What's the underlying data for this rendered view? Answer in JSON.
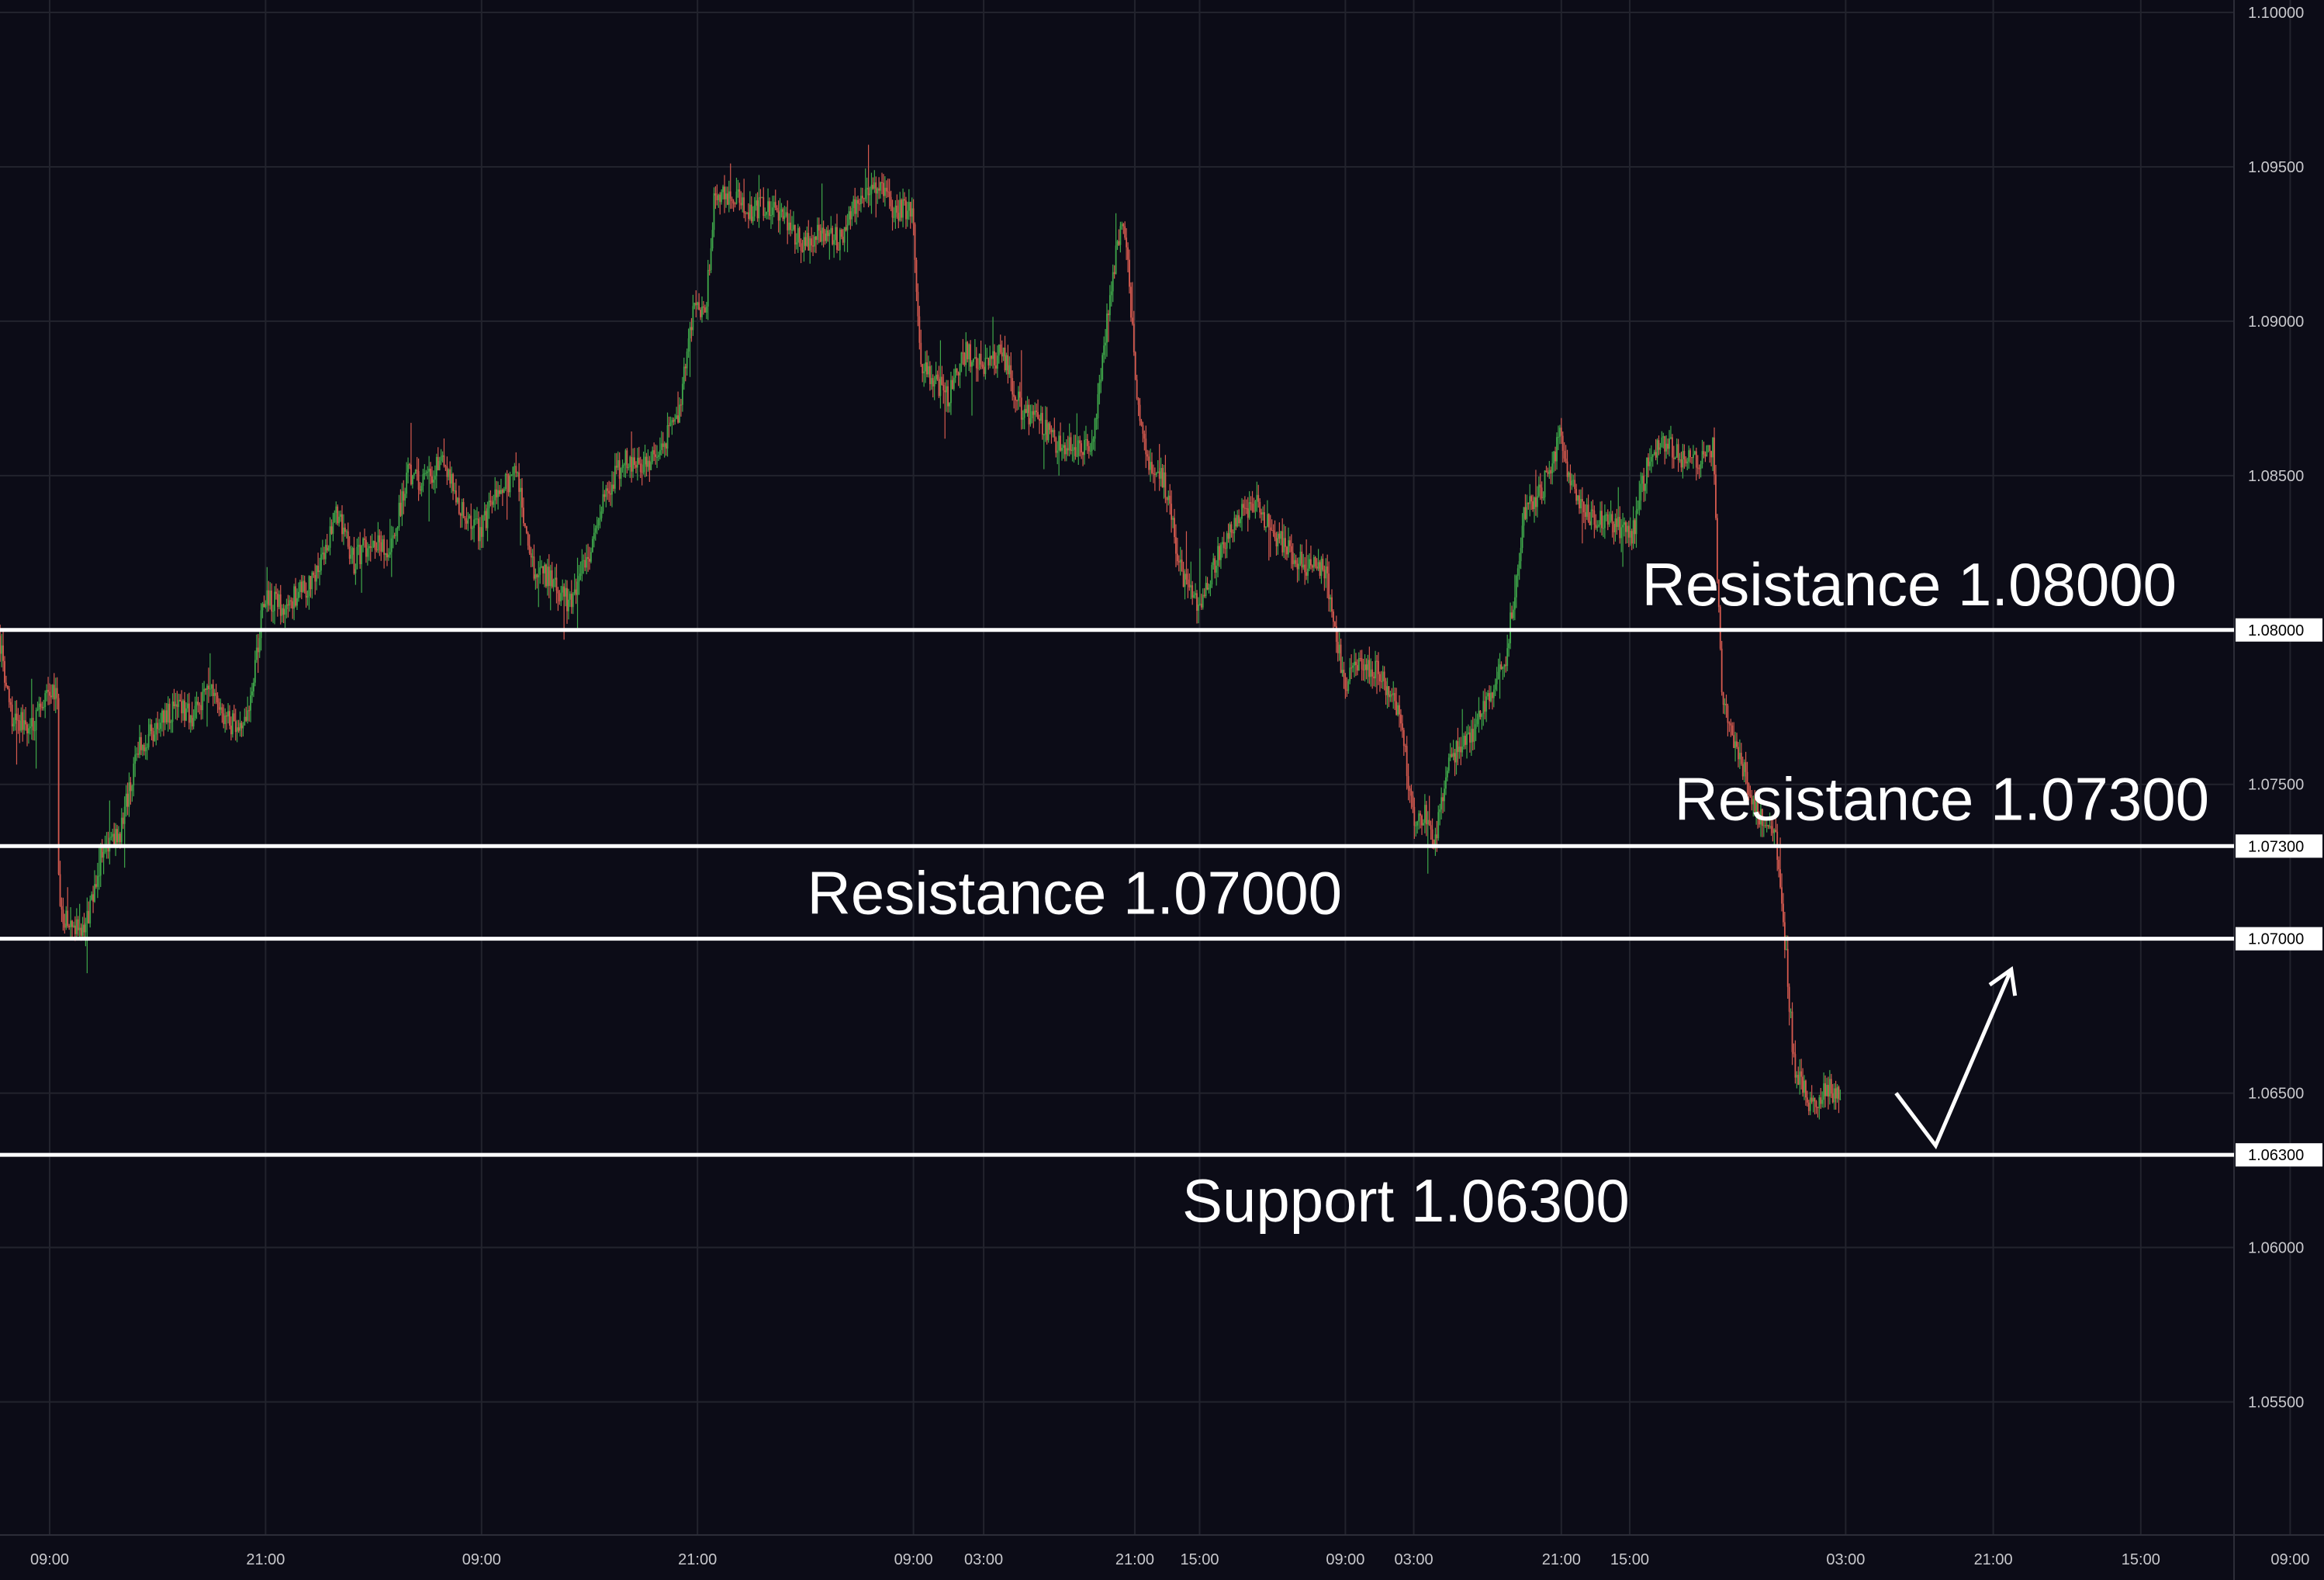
{
  "colors": {
    "background": "#0c0c17",
    "grid": "#22232d",
    "axis_text": "#c8c8cc",
    "level_line": "#ffffff",
    "bull": "#3fa84a",
    "bear": "#d65a4f",
    "annotation_text": "#ffffff"
  },
  "chart_data": {
    "type": "candlestick",
    "title": "",
    "xlabel": "",
    "ylabel": "",
    "ylim": [
      1.0527,
      1.1
    ],
    "y_ticks": [
      "1.10000",
      "1.09500",
      "1.09000",
      "1.08500",
      "1.08000",
      "1.07500",
      "1.07300",
      "1.07000",
      "1.06500",
      "1.06300",
      "1.06000",
      "1.05500"
    ],
    "x_ticks": [
      {
        "label": "09:00",
        "t": 0
      },
      {
        "label": "21:00",
        "t": 12
      },
      {
        "label": "09:00",
        "t": 24
      },
      {
        "label": "21:00",
        "t": 36
      },
      {
        "label": "09:00",
        "t": 48
      },
      {
        "label": "03:00",
        "t": 51.9
      },
      {
        "label": "21:00",
        "t": 60.3
      },
      {
        "label": "15:00",
        "t": 63.9
      },
      {
        "label": "09:00",
        "t": 72
      },
      {
        "label": "03:00",
        "t": 75.8
      },
      {
        "label": "21:00",
        "t": 84
      },
      {
        "label": "15:00",
        "t": 87.8
      },
      {
        "label": "03:00",
        "t": 99.8
      },
      {
        "label": "21:00",
        "t": 108
      },
      {
        "label": "15:00",
        "t": 116.2
      },
      {
        "label": "09:00",
        "t": 124.5
      }
    ],
    "price_path": [
      [
        -3,
        1.0805
      ],
      [
        -2,
        1.0772
      ],
      [
        -1,
        1.0768
      ],
      [
        0,
        1.0778
      ],
      [
        0.5,
        1.078
      ],
      [
        0.6,
        1.0708
      ],
      [
        2,
        1.0702
      ],
      [
        3,
        1.0728
      ],
      [
        4,
        1.0735
      ],
      [
        5,
        1.0762
      ],
      [
        6,
        1.0768
      ],
      [
        7,
        1.0775
      ],
      [
        8,
        1.0772
      ],
      [
        9,
        1.0782
      ],
      [
        10,
        1.077
      ],
      [
        11,
        1.0768
      ],
      [
        12,
        1.081
      ],
      [
        13,
        1.0808
      ],
      [
        14,
        1.0812
      ],
      [
        15,
        1.0818
      ],
      [
        16,
        1.0838
      ],
      [
        17,
        1.0822
      ],
      [
        18,
        1.083
      ],
      [
        19,
        1.0825
      ],
      [
        20,
        1.085
      ],
      [
        21,
        1.0848
      ],
      [
        22,
        1.0856
      ],
      [
        23,
        1.0838
      ],
      [
        24,
        1.0832
      ],
      [
        25,
        1.0845
      ],
      [
        26,
        1.085
      ],
      [
        27,
        1.082
      ],
      [
        28,
        1.0816
      ],
      [
        29,
        1.0808
      ],
      [
        30,
        1.0824
      ],
      [
        31,
        1.0845
      ],
      [
        32,
        1.0855
      ],
      [
        33,
        1.0852
      ],
      [
        34,
        1.0858
      ],
      [
        35,
        1.087
      ],
      [
        36,
        1.0908
      ],
      [
        36.5,
        1.0902
      ],
      [
        37,
        1.0938
      ],
      [
        38,
        1.0942
      ],
      [
        39,
        1.0935
      ],
      [
        40,
        1.0938
      ],
      [
        41,
        1.0932
      ],
      [
        42,
        1.0924
      ],
      [
        43,
        1.093
      ],
      [
        44,
        1.0926
      ],
      [
        45,
        1.094
      ],
      [
        46,
        1.0945
      ],
      [
        47,
        1.0935
      ],
      [
        48,
        1.0937
      ],
      [
        48.5,
        1.0885
      ],
      [
        49,
        1.0882
      ],
      [
        50,
        1.0876
      ],
      [
        51,
        1.089
      ],
      [
        52,
        1.0885
      ],
      [
        53,
        1.089
      ],
      [
        54,
        1.0872
      ],
      [
        55,
        1.0868
      ],
      [
        56,
        1.086
      ],
      [
        57,
        1.086
      ],
      [
        58,
        1.0858
      ],
      [
        59,
        1.0908
      ],
      [
        59.7,
        1.0935
      ],
      [
        60,
        1.0918
      ],
      [
        60.5,
        1.0878
      ],
      [
        61,
        1.0855
      ],
      [
        62,
        1.0848
      ],
      [
        63,
        1.0818
      ],
      [
        64,
        1.0808
      ],
      [
        65,
        1.0825
      ],
      [
        66,
        1.0835
      ],
      [
        67,
        1.0842
      ],
      [
        68,
        1.0832
      ],
      [
        69,
        1.0825
      ],
      [
        70,
        1.082
      ],
      [
        71,
        1.082
      ],
      [
        72,
        1.0782
      ],
      [
        73,
        1.079
      ],
      [
        74,
        1.0786
      ],
      [
        75,
        1.0775
      ],
      [
        76,
        1.0736
      ],
      [
        76.5,
        1.074
      ],
      [
        77,
        1.073
      ],
      [
        78,
        1.076
      ],
      [
        79,
        1.0765
      ],
      [
        80,
        1.0778
      ],
      [
        81,
        1.079
      ],
      [
        82,
        1.0838
      ],
      [
        83,
        1.0845
      ],
      [
        84,
        1.0862
      ],
      [
        85,
        1.084
      ],
      [
        86,
        1.0835
      ],
      [
        87,
        1.0835
      ],
      [
        88,
        1.083
      ],
      [
        89,
        1.0858
      ],
      [
        90,
        1.086
      ],
      [
        91,
        1.0855
      ],
      [
        92,
        1.0855
      ],
      [
        92.5,
        1.086
      ],
      [
        93,
        1.078
      ],
      [
        94,
        1.0758
      ],
      [
        95,
        1.074
      ],
      [
        96,
        1.0735
      ],
      [
        96.5,
        1.07
      ],
      [
        97,
        1.066
      ],
      [
        98,
        1.0645
      ],
      [
        99,
        1.0652
      ],
      [
        99.5,
        1.0648
      ]
    ],
    "levels": [
      {
        "label": "Resistance 1.08000",
        "price": 1.08,
        "axis_label": "1.08000"
      },
      {
        "label": "Resistance 1.07300",
        "price": 1.073,
        "axis_label": "1.07300"
      },
      {
        "label": "Resistance 1.07000",
        "price": 1.07,
        "axis_label": "1.07000"
      },
      {
        "label": "Support 1.06300",
        "price": 1.063,
        "axis_label": "1.06300"
      }
    ],
    "projection_arrow": [
      [
        102.6,
        1.065
      ],
      [
        104.8,
        1.0633
      ],
      [
        109,
        1.069
      ]
    ],
    "grid": true
  }
}
